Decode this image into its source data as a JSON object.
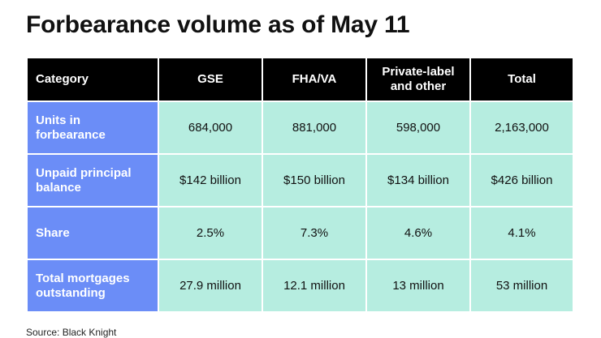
{
  "title": "Forbearance volume as of May 11",
  "chart_data": {
    "type": "table",
    "columns": [
      "Category",
      "GSE",
      "FHA/VA",
      "Private-label and other",
      "Total"
    ],
    "rows": [
      {
        "label": "Units in forbearance",
        "values": [
          "684,000",
          "881,000",
          "598,000",
          "2,163,000"
        ]
      },
      {
        "label": "Unpaid principal balance",
        "values": [
          "$142 billion",
          "$150 billion",
          "$134 billion",
          "$426 billion"
        ]
      },
      {
        "label": "Share",
        "values": [
          "2.5%",
          "7.3%",
          "4.6%",
          "4.1%"
        ]
      },
      {
        "label": "Total mortgages outstanding",
        "values": [
          "27.9 million",
          "12.1 million",
          "13 million",
          "53 million"
        ]
      }
    ]
  },
  "source": "Source: Black Knight",
  "colors": {
    "header_bg": "#000000",
    "row_label_bg": "#6b8df7",
    "cell_bg": "#b6ede0"
  }
}
